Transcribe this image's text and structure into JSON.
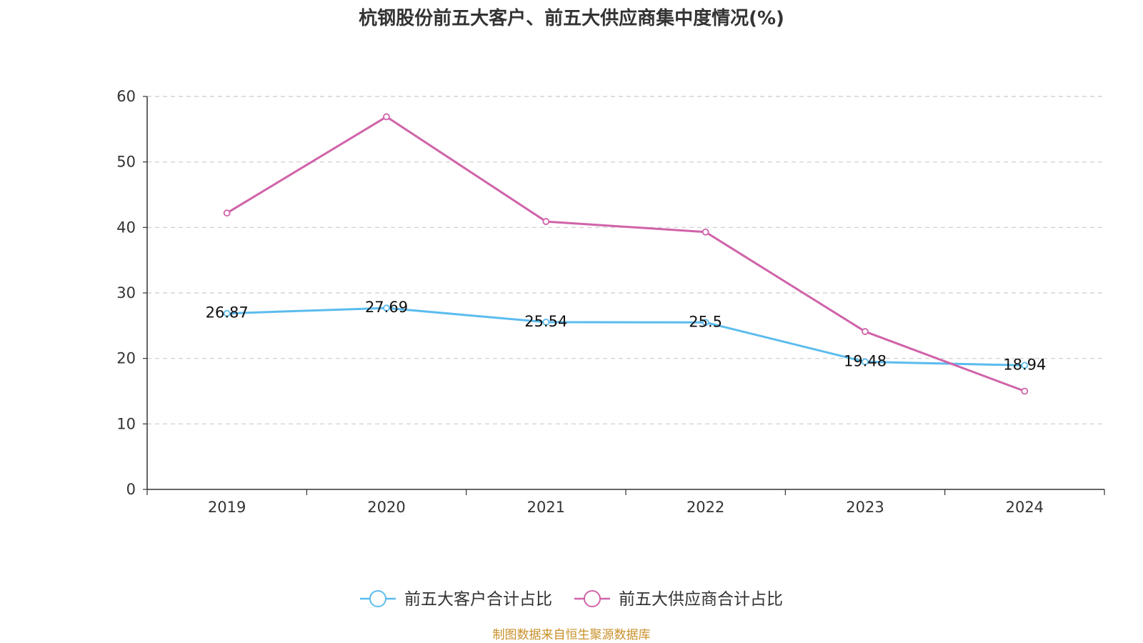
{
  "chart_data": {
    "type": "line",
    "title": "杭钢股份前五大客户、前五大供应商集中度情况(%)",
    "categories": [
      "2019",
      "2020",
      "2021",
      "2022",
      "2023",
      "2024"
    ],
    "series": [
      {
        "name": "前五大客户合计占比",
        "color": "#5bbcee",
        "values": [
          26.87,
          27.69,
          25.54,
          25.5,
          19.48,
          18.94
        ],
        "value_labels": [
          "26.87",
          "27.69",
          "25.54",
          "25.5",
          "19.48",
          "18.94"
        ],
        "show_labels": true
      },
      {
        "name": "前五大供应商合计占比",
        "color": "#d063a9",
        "values": [
          42.2,
          56.9,
          40.9,
          39.3,
          24.1,
          15.0
        ],
        "show_labels": false
      }
    ],
    "ylim": [
      0,
      60
    ],
    "yticks": [
      "0",
      "10",
      "20",
      "30",
      "40",
      "50",
      "60"
    ],
    "grid": true,
    "legend_position": "bottom"
  },
  "source": "制图数据来自恒生聚源数据库"
}
